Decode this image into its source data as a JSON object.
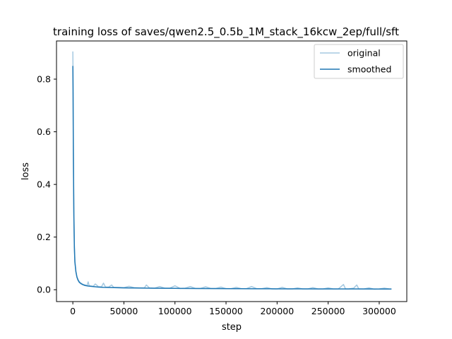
{
  "chart_data": {
    "type": "line",
    "title": "training loss of saves/qwen2.5_0.5b_1M_stack_16kcw_2ep/full/sft",
    "xlabel": "step",
    "ylabel": "loss",
    "xlim": [
      -16000,
      327000
    ],
    "ylim": [
      -0.045,
      0.945
    ],
    "xticks": [
      0,
      50000,
      100000,
      150000,
      200000,
      250000,
      300000
    ],
    "xtick_labels": [
      "0",
      "50000",
      "100000",
      "150000",
      "200000",
      "250000",
      "300000"
    ],
    "yticks": [
      0.0,
      0.2,
      0.4,
      0.6,
      0.8
    ],
    "ytick_labels": [
      "0.0",
      "0.2",
      "0.4",
      "0.6",
      "0.8"
    ],
    "grid": false,
    "legend_position": "upper right",
    "series": [
      {
        "name": "original",
        "color": "#1f77b4",
        "opacity": 0.4,
        "x": [
          0,
          200,
          500,
          1000,
          1500,
          2000,
          3000,
          4000,
          5000,
          6000,
          7000,
          8000,
          10000,
          12000,
          14000,
          15000,
          16000,
          18000,
          20000,
          22000,
          25000,
          28000,
          30000,
          32000,
          35000,
          38000,
          40000,
          45000,
          50000,
          55000,
          60000,
          65000,
          70000,
          72000,
          75000,
          80000,
          85000,
          90000,
          95000,
          100000,
          105000,
          110000,
          115000,
          120000,
          125000,
          130000,
          135000,
          140000,
          145000,
          150000,
          155000,
          160000,
          165000,
          170000,
          175000,
          180000,
          185000,
          190000,
          195000,
          200000,
          205000,
          210000,
          215000,
          220000,
          225000,
          230000,
          235000,
          240000,
          245000,
          250000,
          255000,
          260000,
          265000,
          267000,
          270000,
          275000,
          278000,
          280000,
          285000,
          290000,
          295000,
          300000,
          305000,
          310000,
          312000
        ],
        "y": [
          0.905,
          0.82,
          0.55,
          0.3,
          0.17,
          0.11,
          0.07,
          0.05,
          0.04,
          0.033,
          0.028,
          0.025,
          0.02,
          0.018,
          0.016,
          0.03,
          0.015,
          0.014,
          0.013,
          0.022,
          0.012,
          0.011,
          0.025,
          0.01,
          0.01,
          0.018,
          0.009,
          0.009,
          0.008,
          0.013,
          0.008,
          0.007,
          0.007,
          0.018,
          0.007,
          0.006,
          0.012,
          0.006,
          0.006,
          0.015,
          0.005,
          0.006,
          0.012,
          0.005,
          0.005,
          0.011,
          0.005,
          0.005,
          0.01,
          0.004,
          0.004,
          0.009,
          0.004,
          0.004,
          0.012,
          0.004,
          0.004,
          0.008,
          0.003,
          0.003,
          0.009,
          0.003,
          0.003,
          0.007,
          0.003,
          0.003,
          0.008,
          0.003,
          0.003,
          0.007,
          0.003,
          0.003,
          0.02,
          0.003,
          0.003,
          0.006,
          0.018,
          0.003,
          0.003,
          0.007,
          0.002,
          0.003,
          0.006,
          0.003,
          0.003
        ]
      },
      {
        "name": "smoothed",
        "color": "#1f77b4",
        "opacity": 1.0,
        "x": [
          0,
          200,
          500,
          1000,
          1500,
          2000,
          3000,
          4000,
          5000,
          6000,
          7000,
          8000,
          10000,
          12000,
          15000,
          20000,
          25000,
          30000,
          40000,
          50000,
          60000,
          80000,
          100000,
          120000,
          140000,
          160000,
          180000,
          200000,
          220000,
          240000,
          260000,
          280000,
          300000,
          312000
        ],
        "y": [
          0.85,
          0.76,
          0.52,
          0.28,
          0.16,
          0.105,
          0.068,
          0.048,
          0.037,
          0.03,
          0.026,
          0.023,
          0.019,
          0.016,
          0.014,
          0.012,
          0.01,
          0.009,
          0.008,
          0.007,
          0.0065,
          0.0058,
          0.0052,
          0.0047,
          0.0043,
          0.004,
          0.0037,
          0.0034,
          0.0032,
          0.003,
          0.0029,
          0.0028,
          0.0027,
          0.0027
        ]
      }
    ]
  }
}
